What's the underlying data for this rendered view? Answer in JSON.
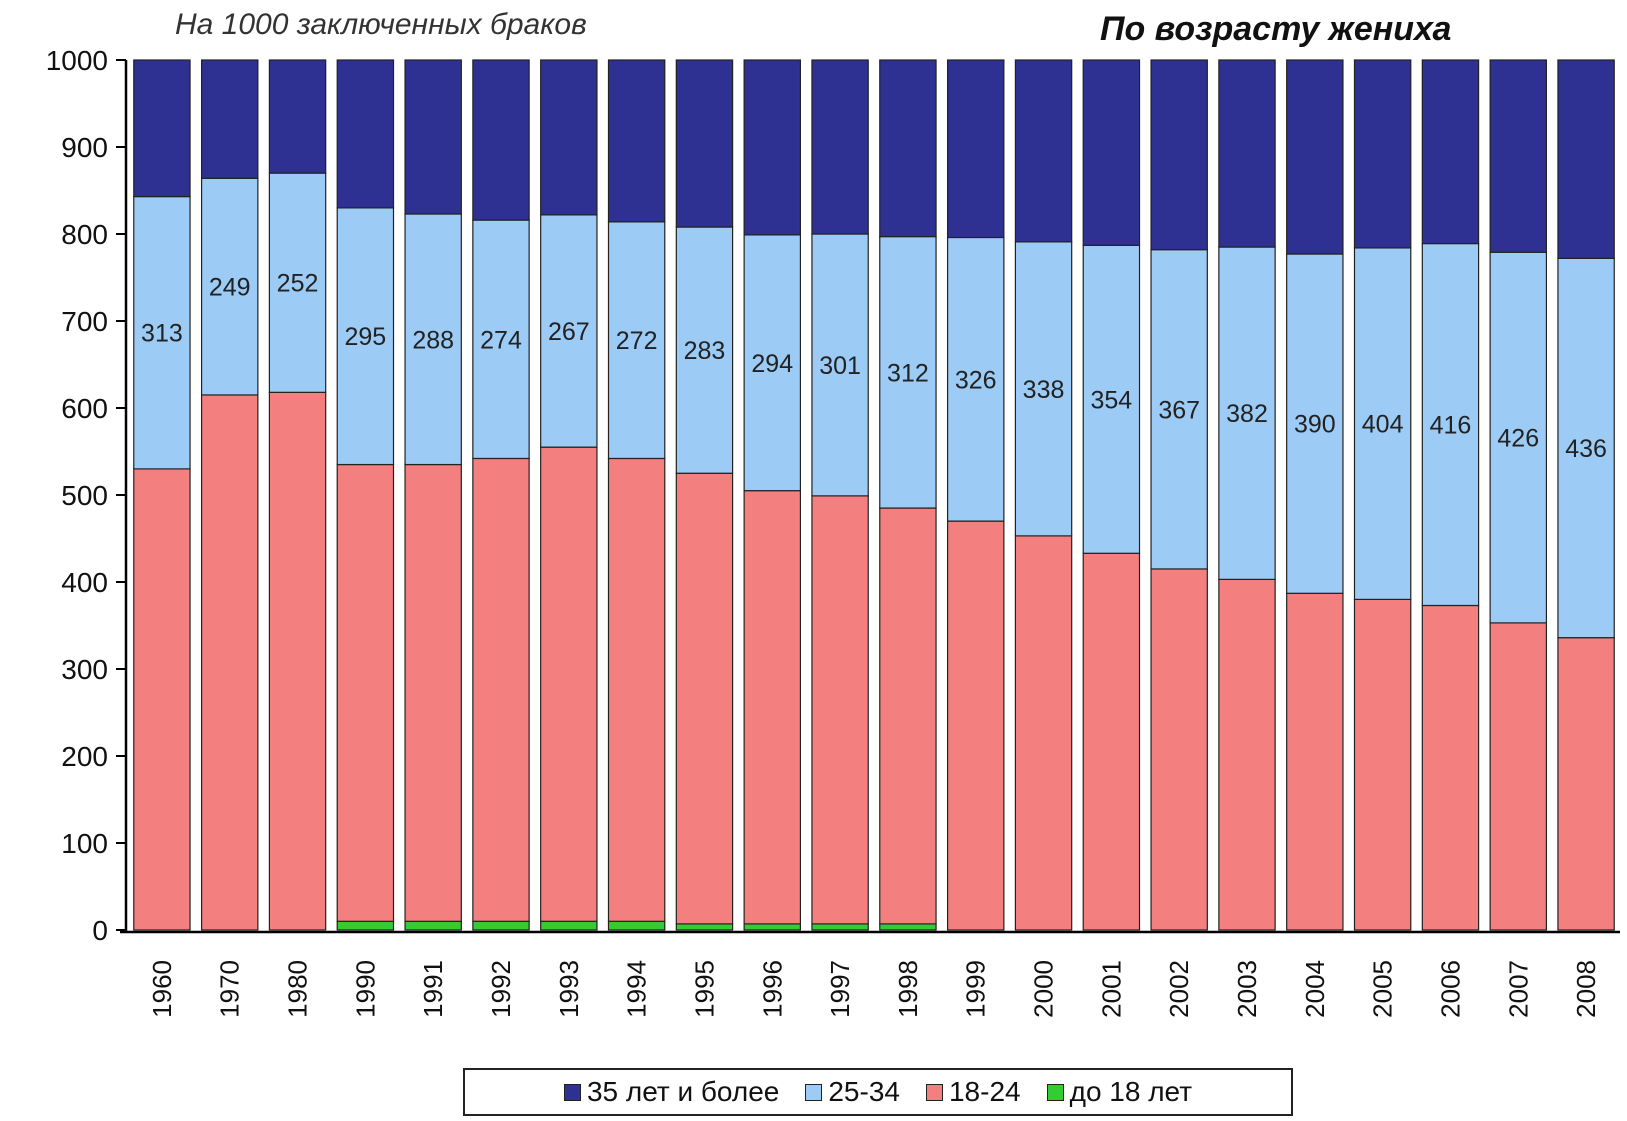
{
  "chart_data": {
    "type": "bar",
    "stacked": true,
    "subtitle": "На 1000 заключенных браков",
    "title": "По возрасту жениха",
    "ylim": [
      0,
      1000
    ],
    "yticks": [
      0,
      100,
      200,
      300,
      400,
      500,
      600,
      700,
      800,
      900,
      1000
    ],
    "grid": false,
    "legend_position": "bottom",
    "categories": [
      "1960",
      "1970",
      "1980",
      "1990",
      "1991",
      "1992",
      "1993",
      "1994",
      "1995",
      "1996",
      "1997",
      "1998",
      "1999",
      "2000",
      "2001",
      "2002",
      "2003",
      "2004",
      "2005",
      "2006",
      "2007",
      "2008"
    ],
    "series": [
      {
        "name": "до 18 лет",
        "color": "#33cc33",
        "values": [
          0,
          0,
          0,
          10,
          10,
          10,
          10,
          10,
          7,
          7,
          7,
          7,
          0,
          0,
          0,
          0,
          0,
          0,
          0,
          0,
          0,
          0
        ]
      },
      {
        "name": "18-24",
        "color": "#f47f7f",
        "values": [
          530,
          615,
          618,
          525,
          525,
          532,
          545,
          532,
          518,
          498,
          492,
          478,
          470,
          453,
          433,
          415,
          403,
          387,
          380,
          373,
          353,
          336
        ]
      },
      {
        "name": "25-34",
        "color": "#9ccbf5",
        "values": [
          313,
          249,
          252,
          295,
          288,
          274,
          267,
          272,
          283,
          294,
          301,
          312,
          326,
          338,
          354,
          367,
          382,
          390,
          404,
          416,
          426,
          436
        ]
      },
      {
        "name": "35 лет и более",
        "color": "#2e3192",
        "values": [
          157,
          136,
          130,
          170,
          177,
          184,
          178,
          186,
          192,
          201,
          200,
          203,
          204,
          209,
          213,
          218,
          215,
          223,
          216,
          211,
          221,
          228
        ]
      }
    ],
    "data_labels_series": "25-34",
    "legend_order": [
      "35 лет и более",
      "25-34",
      "18-24",
      "до 18 лет"
    ]
  }
}
